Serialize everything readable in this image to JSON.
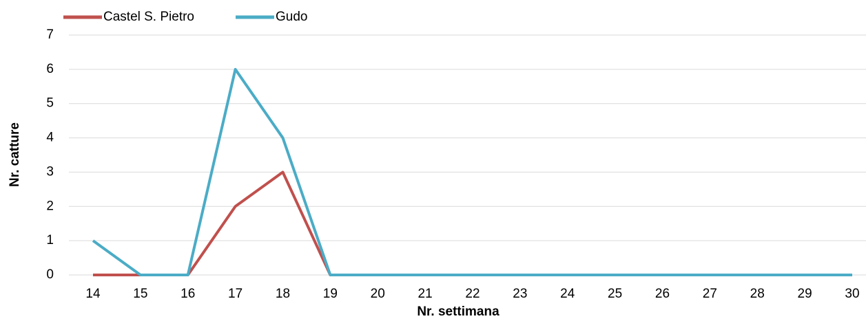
{
  "chart_data": {
    "type": "line",
    "xlabel": "Nr. settimana",
    "ylabel": "Nr. catture",
    "categories": [
      "14",
      "15",
      "16",
      "17",
      "18",
      "19",
      "20",
      "21",
      "22",
      "23",
      "24",
      "25",
      "26",
      "27",
      "28",
      "29",
      "30"
    ],
    "series": [
      {
        "name": "Castel S. Pietro",
        "color": "#c0504d",
        "values": [
          0,
          0,
          0,
          2,
          3,
          0,
          0,
          0,
          0,
          0,
          0,
          0,
          0,
          0,
          0,
          0,
          0
        ]
      },
      {
        "name": "Gudo",
        "color": "#4bacc6",
        "values": [
          1,
          0,
          0,
          6,
          4,
          0,
          0,
          0,
          0,
          0,
          0,
          0,
          0,
          0,
          0,
          0,
          0
        ]
      }
    ],
    "ylim": [
      0,
      7
    ],
    "yticks": [
      0,
      1,
      2,
      3,
      4,
      5,
      6,
      7
    ],
    "grid": true,
    "legend": "top-left"
  }
}
